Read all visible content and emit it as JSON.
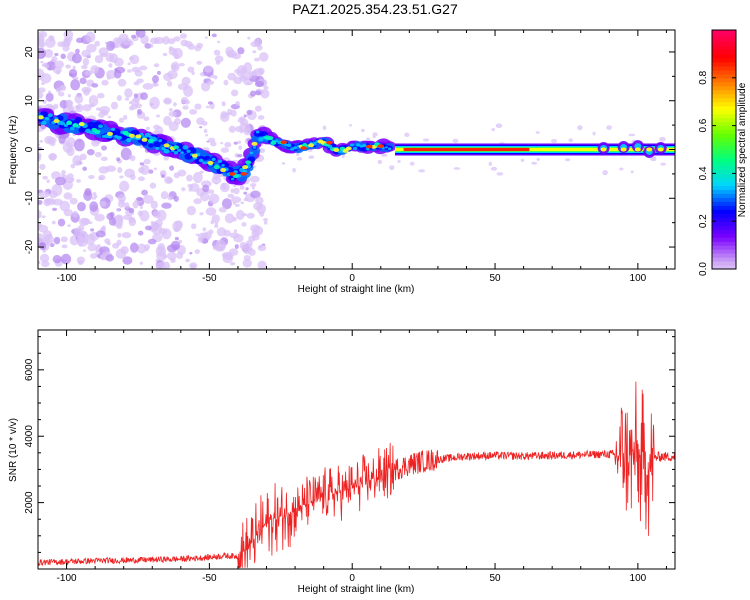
{
  "title": "PAZ1.2025.354.23.51.G27",
  "chart_data": [
    {
      "type": "heatmap",
      "xlabel": "Height of straight line (km)",
      "ylabel": "Frequency (Hz)",
      "xlim": [
        -110,
        113
      ],
      "ylim": [
        -24.5,
        24.5
      ],
      "xticks": [
        -100,
        -50,
        0,
        50,
        100
      ],
      "yticks": [
        -20,
        -10,
        0,
        10,
        20
      ],
      "ridge": {
        "x": [
          -108,
          -100,
          -95,
          -90,
          -85,
          -80,
          -75,
          -70,
          -65,
          -60,
          -55,
          -50,
          -45,
          -42,
          -39,
          -36,
          -33,
          -32,
          -30,
          -25,
          -20,
          -15,
          -10,
          -5,
          0,
          5,
          10,
          15,
          30,
          50,
          70,
          90,
          95,
          100,
          104,
          108,
          113
        ],
        "freq": [
          6.5,
          5.2,
          5.0,
          4.2,
          3.5,
          3.0,
          2.5,
          1.6,
          0.6,
          -0.3,
          -1.3,
          -2.5,
          -3.8,
          -5.0,
          -5.2,
          -2.8,
          3.0,
          2.8,
          2.2,
          1.3,
          0.3,
          1.0,
          1.5,
          -0.3,
          0.6,
          0.5,
          0.7,
          0.0,
          0.0,
          0.0,
          0.0,
          0.0,
          0.3,
          0.6,
          0.0,
          0.3,
          0.0
        ]
      },
      "colorbar": {
        "label": "Normalized spectral amplitude",
        "ticks": [
          0.0,
          0.2,
          0.4,
          0.6,
          0.8
        ],
        "tick_labels": [
          "0.0",
          "0.2",
          "0.4",
          "0.6",
          "0.8"
        ],
        "colors": [
          "#ffffff",
          "#cfa8f5",
          "#7a00ff",
          "#0000ff",
          "#00d5ff",
          "#00ff80",
          "#66ff00",
          "#ffff00",
          "#ff8000",
          "#ff0000",
          "#ff0060"
        ]
      }
    },
    {
      "type": "line",
      "xlabel": "Height of straight line (km)",
      "ylabel": "SNR (10 * v/v)",
      "xlim": [
        -110,
        113
      ],
      "ylim": [
        0,
        7200
      ],
      "xticks": [
        -100,
        -50,
        0,
        50,
        100
      ],
      "yticks": [
        2000,
        4000,
        6000
      ],
      "line_color": "#ee2222",
      "series": [
        {
          "name": "SNR",
          "x": [
            -110,
            -100,
            -90,
            -80,
            -70,
            -60,
            -50,
            -45,
            -40,
            -35,
            -30,
            -25,
            -20,
            -15,
            -10,
            -5,
            0,
            5,
            10,
            15,
            20,
            25,
            30,
            35,
            40,
            50,
            60,
            70,
            80,
            85,
            90,
            93,
            95,
            97,
            100,
            102,
            103,
            104,
            105,
            106,
            108,
            110,
            113
          ],
          "values": [
            200,
            220,
            250,
            260,
            280,
            300,
            350,
            400,
            380,
            800,
            1400,
            1600,
            1800,
            2000,
            2200,
            2300,
            2450,
            2650,
            2800,
            3000,
            3150,
            3250,
            3300,
            3350,
            3400,
            3420,
            3400,
            3420,
            3440,
            3450,
            3460,
            3400,
            3500,
            3400,
            3350,
            3100,
            3400,
            3000,
            3200,
            3350,
            3400,
            3380,
            3400
          ]
        }
      ]
    }
  ]
}
